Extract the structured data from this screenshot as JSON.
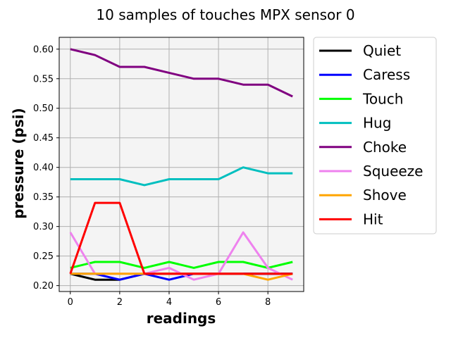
{
  "chart_data": {
    "type": "line",
    "title": "10 samples of touches MPX sensor 0",
    "xlabel": "readings",
    "ylabel": "pressure (psi)",
    "x": [
      0,
      1,
      2,
      3,
      4,
      5,
      6,
      7,
      8,
      9
    ],
    "xlim": [
      -0.45,
      9.45
    ],
    "ylim": [
      0.19,
      0.62
    ],
    "xticks": [
      0,
      2,
      4,
      6,
      8
    ],
    "xtick_labels": [
      "0",
      "2",
      "4",
      "6",
      "8"
    ],
    "yticks": [
      0.2,
      0.25,
      0.3,
      0.35,
      0.4,
      0.45,
      0.5,
      0.55,
      0.6
    ],
    "ytick_labels": [
      "0.20",
      "0.25",
      "0.30",
      "0.35",
      "0.40",
      "0.45",
      "0.50",
      "0.55",
      "0.60"
    ],
    "grid": true,
    "legend_position": "outside-right",
    "series": [
      {
        "name": "Quiet",
        "color": "#000000",
        "values": [
          0.22,
          0.21,
          0.21,
          0.22,
          0.22,
          0.22,
          0.22,
          0.22,
          0.22,
          0.22
        ]
      },
      {
        "name": "Caress",
        "color": "#0000ff",
        "values": [
          0.22,
          0.22,
          0.21,
          0.22,
          0.21,
          0.22,
          0.22,
          0.22,
          0.22,
          0.22
        ]
      },
      {
        "name": "Touch",
        "color": "#00ff00",
        "values": [
          0.23,
          0.24,
          0.24,
          0.23,
          0.24,
          0.23,
          0.24,
          0.24,
          0.23,
          0.24
        ]
      },
      {
        "name": "Hug",
        "color": "#00bfbf",
        "values": [
          0.38,
          0.38,
          0.38,
          0.37,
          0.38,
          0.38,
          0.38,
          0.4,
          0.39,
          0.39
        ]
      },
      {
        "name": "Choke",
        "color": "#800080",
        "values": [
          0.6,
          0.59,
          0.57,
          0.57,
          0.56,
          0.55,
          0.55,
          0.54,
          0.54,
          0.52
        ]
      },
      {
        "name": "Squeeze",
        "color": "#ee82ee",
        "values": [
          0.29,
          0.22,
          0.22,
          0.22,
          0.23,
          0.21,
          0.22,
          0.29,
          0.23,
          0.21
        ]
      },
      {
        "name": "Shove",
        "color": "#ffa500",
        "values": [
          0.22,
          0.22,
          0.22,
          0.22,
          0.22,
          0.22,
          0.22,
          0.22,
          0.21,
          0.22
        ]
      },
      {
        "name": "Hit",
        "color": "#ff0000",
        "values": [
          0.22,
          0.34,
          0.34,
          0.22,
          0.22,
          0.22,
          0.22,
          0.22,
          0.22,
          0.22
        ]
      }
    ]
  }
}
